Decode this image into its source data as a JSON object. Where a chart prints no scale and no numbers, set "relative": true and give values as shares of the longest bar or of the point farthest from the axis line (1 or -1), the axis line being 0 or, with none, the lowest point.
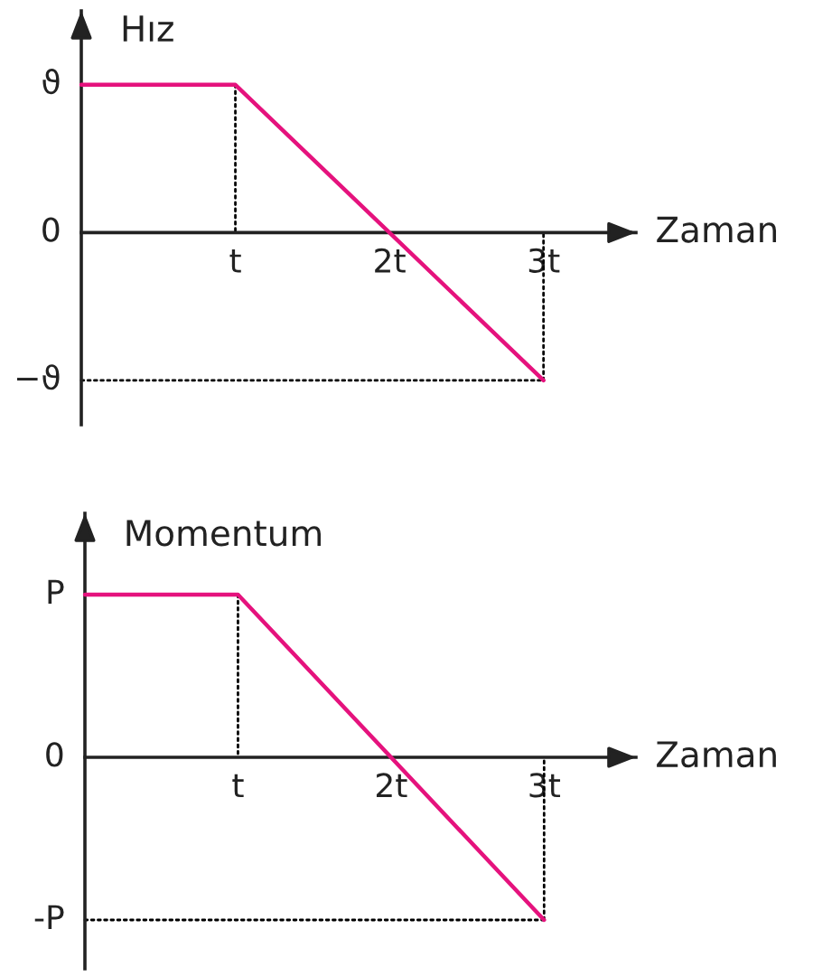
{
  "chart_data": [
    {
      "type": "line",
      "relative": true,
      "xlabel": "Zaman",
      "ylabel": "Hız",
      "xlim": [
        0,
        3.6
      ],
      "xticks": [
        {
          "value": 1,
          "label": "t"
        },
        {
          "value": 2,
          "label": "2t"
        },
        {
          "value": 3,
          "label": "3t"
        }
      ],
      "annotations": [
        "ϑ",
        "0",
        "−ϑ"
      ],
      "series": [
        {
          "x": [
            0,
            1,
            3
          ],
          "values": [
            1,
            1,
            -1
          ],
          "color": "#e5127d"
        },
        {
          "x": [
            1,
            1
          ],
          "values": [
            1,
            0
          ],
          "color": "#000000",
          "line_style": "dotted"
        },
        {
          "x": [
            3,
            3
          ],
          "values": [
            -1,
            0
          ],
          "color": "#000000",
          "line_style": "dotted"
        },
        {
          "x": [
            0,
            3
          ],
          "values": [
            -1,
            -1
          ],
          "color": "#000000",
          "line_style": "dotted"
        }
      ]
    },
    {
      "type": "line",
      "relative": true,
      "xlabel": "Zaman",
      "ylabel": "Momentum",
      "xlim": [
        0,
        3.6
      ],
      "xticks": [
        {
          "value": 1,
          "label": "t"
        },
        {
          "value": 2,
          "label": "2t"
        },
        {
          "value": 3,
          "label": "3t"
        }
      ],
      "annotations": [
        "P",
        "0",
        "-P"
      ],
      "series": [
        {
          "x": [
            0,
            1,
            3
          ],
          "values": [
            1,
            1,
            -1
          ],
          "color": "#e5127d"
        },
        {
          "x": [
            1,
            1
          ],
          "values": [
            1,
            0
          ],
          "color": "#000000",
          "line_style": "dotted"
        },
        {
          "x": [
            3,
            3
          ],
          "values": [
            -1,
            0
          ],
          "color": "#000000",
          "line_style": "dotted"
        },
        {
          "x": [
            0,
            3
          ],
          "values": [
            -1,
            -1
          ],
          "color": "#000000",
          "line_style": "dotted"
        }
      ]
    }
  ]
}
